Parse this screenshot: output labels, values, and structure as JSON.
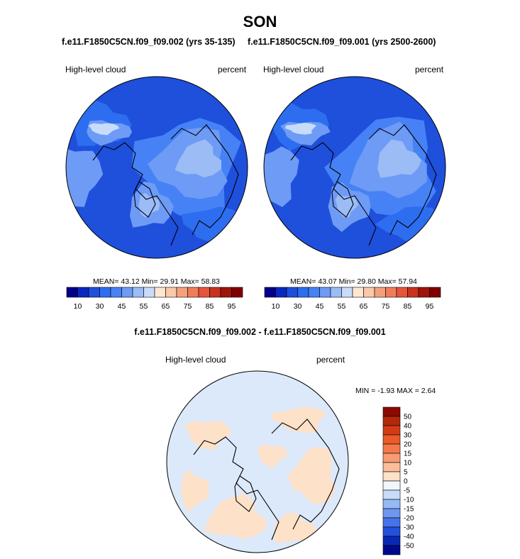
{
  "figure": {
    "season": "SON",
    "panel_titles": [
      "f.e11.F1850C5CN.f09_f09.002 (yrs 35-135)",
      "f.e11.F1850C5CN.f09_f09.001 (yrs 2500-2600)"
    ],
    "diff_title": "f.e11.F1850C5CN.f09_f09.002 - f.e11.F1850C5CN.f09_f09.001"
  },
  "chart_data": [
    {
      "type": "heatmap",
      "projection": "polar-stereographic-north",
      "variable_label": "High-level cloud",
      "units_label": "percent",
      "stats_text": "MEAN=  43.12  Min=  29.91  Max=  58.83",
      "mean": 43.12,
      "min": 29.91,
      "max": 58.83,
      "colorbar": {
        "tick_labels": [
          "10",
          "30",
          "45",
          "55",
          "65",
          "75",
          "85",
          "95"
        ],
        "colors": [
          "#00008a",
          "#0a28c0",
          "#1e50dc",
          "#2d6ef0",
          "#4682f5",
          "#6e9bf5",
          "#9bbcf5",
          "#c8dcfa",
          "#fde6d2",
          "#fac8aa",
          "#f5a07d",
          "#f07d5a",
          "#e6553a",
          "#c8321e",
          "#a0140a",
          "#800000"
        ]
      }
    },
    {
      "type": "heatmap",
      "projection": "polar-stereographic-north",
      "variable_label": "High-level cloud",
      "units_label": "percent",
      "stats_text": "MEAN=  43.07  Min=  29.80  Max=  57.94",
      "mean": 43.07,
      "min": 29.8,
      "max": 57.94,
      "colorbar": {
        "tick_labels": [
          "10",
          "30",
          "45",
          "55",
          "65",
          "75",
          "85",
          "95"
        ],
        "colors": [
          "#00008a",
          "#0a28c0",
          "#1e50dc",
          "#2d6ef0",
          "#4682f5",
          "#6e9bf5",
          "#9bbcf5",
          "#c8dcfa",
          "#fde6d2",
          "#fac8aa",
          "#f5a07d",
          "#f07d5a",
          "#e6553a",
          "#c8321e",
          "#a0140a",
          "#800000"
        ]
      }
    },
    {
      "type": "heatmap",
      "projection": "polar-stereographic-north",
      "variable_label": "High-level cloud",
      "units_label": "percent",
      "stats_text": "MIN =  -1.93 MAX =   2.64",
      "min": -1.93,
      "max": 2.64,
      "colorbar": {
        "orientation": "vertical",
        "tick_labels": [
          "50",
          "40",
          "30",
          "20",
          "15",
          "10",
          "5",
          "0",
          "-5",
          "-10",
          "-15",
          "-20",
          "-30",
          "-40",
          "-50"
        ],
        "colors": [
          "#8c0a00",
          "#b4280a",
          "#d23c14",
          "#eb5a28",
          "#f5784b",
          "#f89b73",
          "#fabe9b",
          "#fde1c8",
          "#f0f5ff",
          "#c8dcfa",
          "#96b9f5",
          "#6e96f0",
          "#4673eb",
          "#2350dc",
          "#0a28b4",
          "#00088c"
        ]
      }
    }
  ]
}
